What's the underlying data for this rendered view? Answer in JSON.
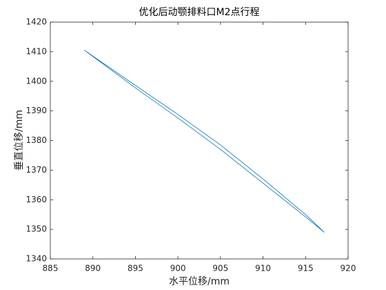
{
  "chart_data": {
    "type": "line",
    "title": "优化后动颚排料口M2点行程",
    "x_label": "水平位移/mm",
    "y_label": "垂直位移/mm",
    "x": [
      889,
      895,
      900,
      905,
      910,
      915,
      917.2,
      915,
      910,
      905,
      900,
      895,
      889
    ],
    "series": [
      {
        "color": "#0072bd",
        "values": [
          1410.5,
          1398.6,
          1388.8,
          1378.5,
          1367.0,
          1355.0,
          1349,
          1354.2,
          1365.6,
          1377.0,
          1387.6,
          1397.8,
          1410.5
        ]
      }
    ],
    "xlim": [
      885,
      920
    ],
    "xticks": [
      885,
      890,
      895,
      900,
      905,
      910,
      915,
      920
    ],
    "ylim": [
      1340,
      1420
    ],
    "yticks": [
      1340,
      1350,
      1360,
      1370,
      1380,
      1390,
      1400,
      1410,
      1420
    ],
    "grid": false
  }
}
